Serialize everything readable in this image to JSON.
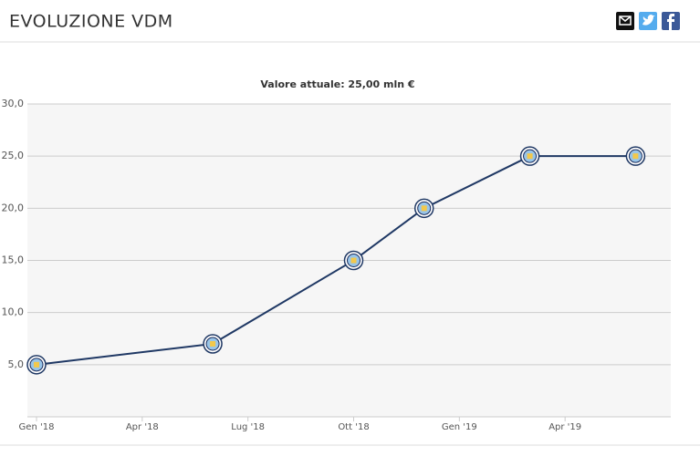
{
  "header": {
    "title": "EVOLUZIONE VDM"
  },
  "chart_data": {
    "type": "line",
    "title": "Valore attuale: 25,00 mln €",
    "x": [
      "2018-01",
      "2018-06",
      "2018-10",
      "2018-12",
      "2019-03",
      "2019-06"
    ],
    "series": [
      {
        "color": "#1f3864",
        "values": [
          5,
          7,
          15,
          20,
          25,
          25
        ]
      }
    ],
    "xlim": [
      "2018-01",
      "2019-07"
    ],
    "xticks": [
      {
        "value": "2018-01",
        "label": "Gen '18"
      },
      {
        "value": "2018-04",
        "label": "Apr '18"
      },
      {
        "value": "2018-07",
        "label": "Lug '18"
      },
      {
        "value": "2018-10",
        "label": "Ott '18"
      },
      {
        "value": "2019-01",
        "label": "Gen '19"
      },
      {
        "value": "2019-04",
        "label": "Apr '19"
      }
    ],
    "ylim": [
      0,
      30
    ],
    "yticks": [
      {
        "value": 5,
        "label": "5,0"
      },
      {
        "value": 10,
        "label": "10,0"
      },
      {
        "value": 15,
        "label": "15,0"
      },
      {
        "value": 20,
        "label": "20,0"
      },
      {
        "value": 25,
        "label": "25,0"
      },
      {
        "value": 30,
        "label": "30,0"
      }
    ],
    "grid": true
  }
}
